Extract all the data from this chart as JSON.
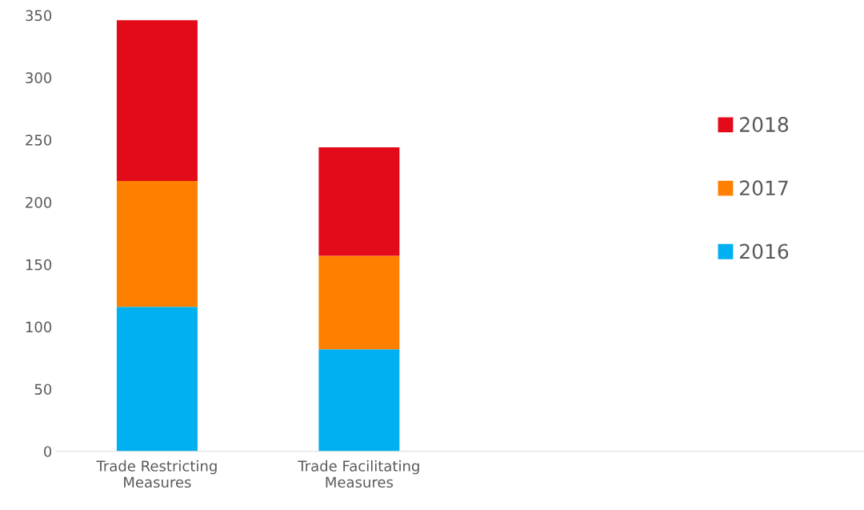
{
  "chart_data": {
    "type": "bar",
    "stacked": true,
    "categories": [
      "Trade Restricting\nMeasures",
      "Trade Facilitating\nMeasures",
      null,
      null
    ],
    "series": [
      {
        "name": "2016",
        "color": "#00b0f0",
        "values": [
          116,
          82,
          null,
          null
        ]
      },
      {
        "name": "2017",
        "color": "#ff8000",
        "values": [
          101,
          75,
          null,
          null
        ]
      },
      {
        "name": "2018",
        "color": "#e30a1a",
        "values": [
          129,
          87,
          null,
          null
        ]
      }
    ],
    "ylim": [
      0,
      350
    ],
    "yticks": [
      0,
      50,
      100,
      150,
      200,
      250,
      300,
      350
    ],
    "grid": false,
    "legend": "right"
  }
}
